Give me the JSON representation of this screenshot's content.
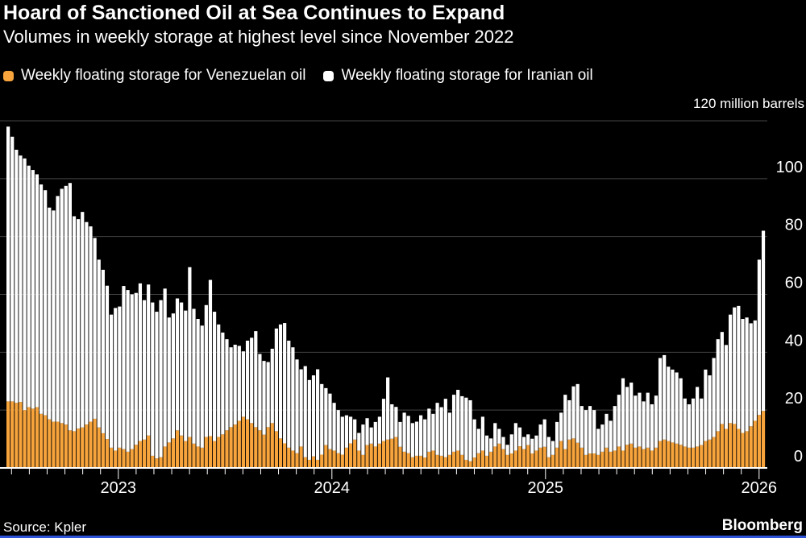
{
  "header": {
    "title": "Hoard of Sanctioned Oil at Sea Continues to Expand",
    "subtitle": "Volumes in weekly storage at highest level since November 2022"
  },
  "legend": {
    "venezuela_label": "Weekly floating storage for Venezuelan oil",
    "iran_label": "Weekly floating storage for Iranian oil"
  },
  "axis_note": "120 million barrels",
  "footer": {
    "source": "Source: Kpler",
    "brand": "Bloomberg"
  },
  "colors": {
    "background": "#000000",
    "venezuelan": "#F7A43C",
    "iranian": "#FFFFFF",
    "gridline": "#454545",
    "axis": "#FFFFFF",
    "text": "#FFFFFF",
    "accent_bottom": "#2E53D7"
  },
  "chart_data": {
    "type": "bar",
    "stacked": true,
    "title": "Hoard of Sanctioned Oil at Sea Continues to Expand",
    "subtitle": "Volumes in weekly storage at highest level since November 2022",
    "unit_label": "120 million barrels",
    "ylim": [
      0,
      120
    ],
    "yticks": [
      0,
      20,
      40,
      60,
      80,
      100
    ],
    "grid": true,
    "legend_position": "top",
    "x_year_labels": [
      "2023",
      "2024",
      "2025",
      "2026"
    ],
    "x_note": "weekly data, ~Jul 2022 to mid-Jan 2026; year ticks mark Jan 1",
    "series": [
      {
        "name": "Weekly floating storage for Venezuelan oil",
        "color": "#F7A43C",
        "values": [
          23,
          23,
          22.5,
          22.8,
          20,
          21,
          20.5,
          21,
          18.7,
          18.2,
          16.8,
          16,
          16,
          15.5,
          15,
          13,
          12.7,
          13.6,
          14,
          15,
          16,
          17,
          14,
          12,
          10,
          7,
          6,
          7,
          6.5,
          5.6,
          6.5,
          8,
          9.3,
          9.8,
          11.2,
          4.2,
          3.3,
          3.7,
          7.4,
          8.8,
          10.2,
          13,
          11.2,
          9.3,
          10.7,
          8.4,
          7.4,
          7,
          10.7,
          11,
          9.3,
          10.7,
          11.6,
          13,
          14.1,
          15,
          16.3,
          17.7,
          16.8,
          15.5,
          14.1,
          13,
          11.5,
          14.1,
          15.5,
          12.7,
          10.2,
          8.5,
          7,
          6,
          5.1,
          7.4,
          3.7,
          2.8,
          4,
          2.8,
          4.6,
          7.9,
          6.5,
          6,
          5.1,
          4.6,
          7,
          8.5,
          9.8,
          6,
          4.5,
          7.9,
          8.4,
          7.4,
          8.4,
          9.3,
          9.8,
          10.1,
          10.7,
          7.3,
          5.6,
          5.1,
          3.7,
          4.2,
          4.2,
          3.6,
          5.6,
          6,
          4.5,
          4.2,
          3.7,
          4.5,
          5.6,
          6,
          4.5,
          2.8,
          2.3,
          3.6,
          5.1,
          6,
          4.2,
          5.6,
          7.4,
          8.4,
          6.5,
          4.5,
          5,
          6,
          7.5,
          6.5,
          7.9,
          5,
          6,
          7,
          7.3,
          3.7,
          4.5,
          7,
          9.3,
          6.5,
          9.8,
          10.2,
          8.7,
          7,
          4.5,
          5,
          5,
          4.5,
          5.6,
          7,
          5.6,
          6,
          7.4,
          6,
          8,
          8.4,
          7,
          7.4,
          6.5,
          7,
          6,
          7,
          9.3,
          9.8,
          9.3,
          8.8,
          8.4,
          8,
          7.4,
          7,
          7,
          7.4,
          7.9,
          9.3,
          9.8,
          10.7,
          12.7,
          15.2,
          13.5,
          15.5,
          15.2,
          13.5,
          12.1,
          12.7,
          14.4,
          16.3,
          18.3,
          19.7
        ]
      },
      {
        "name": "Weekly floating storage for Iranian oil",
        "color": "#FFFFFF",
        "values": [
          95,
          91.5,
          87.5,
          85.2,
          87,
          83.5,
          82.5,
          80.5,
          79.3,
          77.8,
          73.2,
          73,
          78,
          81,
          82.5,
          85.5,
          74.3,
          72.4,
          74.5,
          70,
          67.5,
          62.5,
          58,
          56.5,
          53,
          46,
          49.3,
          48.8,
          56.4,
          55.9,
          53.5,
          52.5,
          54.5,
          48.2,
          52.2,
          53,
          50.7,
          54.3,
          54.6,
          43.2,
          43.2,
          45.6,
          46,
          45.1,
          58.7,
          46.6,
          44.1,
          42.2,
          45.6,
          54,
          44.7,
          38.9,
          35.2,
          31.5,
          27.6,
          27.6,
          25.9,
          22.6,
          27.2,
          29.5,
          33.2,
          26.4,
          25.5,
          22.5,
          25.7,
          35.5,
          39.4,
          41.6,
          37,
          35.7,
          32.4,
          26.7,
          31.5,
          27.6,
          28,
          31.3,
          24.4,
          19.7,
          19.2,
          16.5,
          14.9,
          13.1,
          11.2,
          9.2,
          7,
          6.1,
          10.5,
          9.3,
          5.6,
          8.5,
          9.3,
          14.6,
          21.5,
          11.9,
          10.4,
          8.6,
          13.5,
          12.9,
          11.8,
          11.8,
          14,
          13.2,
          14.9,
          12.7,
          18,
          16.8,
          20.2,
          14.6,
          19.7,
          21,
          20.3,
          21.5,
          21.1,
          13.2,
          8.4,
          11.7,
          7,
          4.6,
          8.1,
          5.1,
          4.2,
          3.5,
          6.6,
          9.5,
          6.5,
          4.2,
          3.7,
          5.1,
          5.2,
          8,
          9.5,
          7,
          4.8,
          8.9,
          9.8,
          18.8,
          13.6,
          18,
          20.3,
          14.4,
          15.5,
          16.4,
          15,
          9,
          9.4,
          11.7,
          10.7,
          15.4,
          17.9,
          25,
          20,
          21.1,
          18,
          18.6,
          16.5,
          19,
          16,
          18,
          28.7,
          29.2,
          25.7,
          25.2,
          24.6,
          23,
          16.6,
          15,
          17,
          20.6,
          16.1,
          24.7,
          22.2,
          27.3,
          31.8,
          31.8,
          29,
          37.5,
          40.3,
          42.5,
          39.4,
          39.3,
          35.6,
          34.7,
          53.7,
          62.3
        ]
      }
    ]
  }
}
